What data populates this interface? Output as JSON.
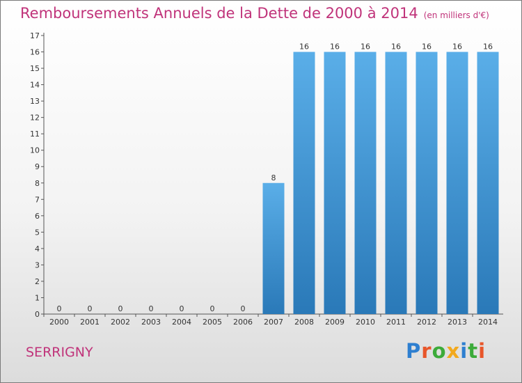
{
  "header": {
    "title": "Remboursements Annuels de la Dette de 2000 à 2014",
    "unit": "(en milliers d'€)"
  },
  "footer": {
    "commune": "SERRIGNY",
    "logo_text": "Proxiti",
    "logo_colors": [
      "#2e7fd0",
      "#e8562a",
      "#3cab3a",
      "#f2a91e",
      "#2e7fd0",
      "#3cab3a",
      "#e8562a"
    ]
  },
  "colors": {
    "bar_top": "#5aaee8",
    "bar_bottom": "#2a79b8",
    "title": "#c0337a"
  },
  "chart_data": {
    "type": "bar",
    "categories": [
      "2000",
      "2001",
      "2002",
      "2003",
      "2004",
      "2005",
      "2006",
      "2007",
      "2008",
      "2009",
      "2010",
      "2011",
      "2012",
      "2013",
      "2014"
    ],
    "values": [
      0,
      0,
      0,
      0,
      0,
      0,
      0,
      8,
      16,
      16,
      16,
      16,
      16,
      16,
      16
    ],
    "data_labels": [
      "0",
      "0",
      "0",
      "0",
      "0",
      "0",
      "0",
      "8",
      "16",
      "16",
      "16",
      "16",
      "16",
      "16",
      "16"
    ],
    "y_ticks": [
      "0",
      "1",
      "2",
      "3",
      "4",
      "5",
      "6",
      "7",
      "8",
      "9",
      "10",
      "11",
      "12",
      "13",
      "14",
      "15",
      "16",
      "17"
    ],
    "ylim": [
      0,
      17
    ],
    "grid": false,
    "legend": "none"
  }
}
